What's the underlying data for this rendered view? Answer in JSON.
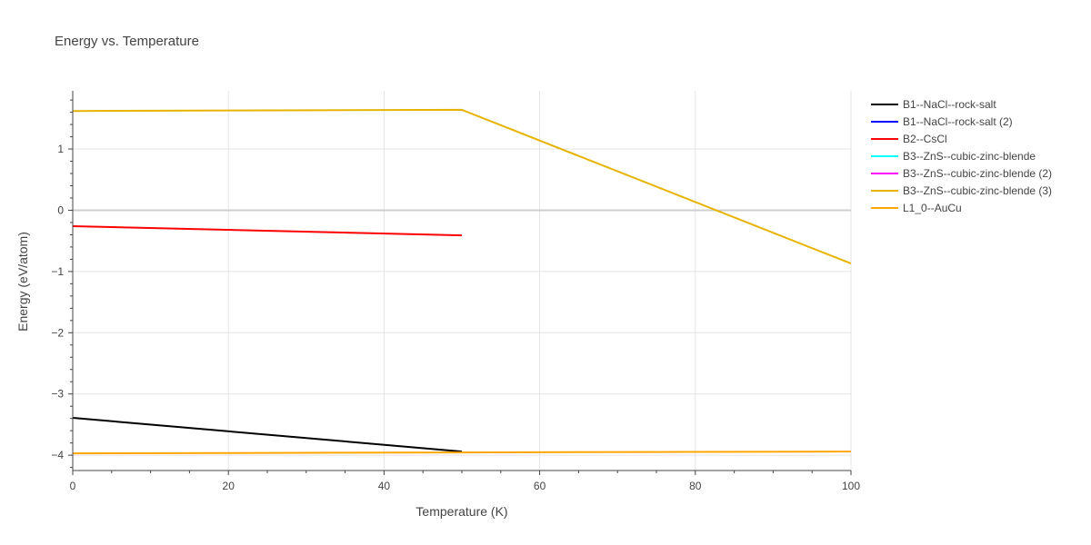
{
  "chart_data": {
    "type": "line",
    "title": "Energy vs. Temperature",
    "xlabel": "Temperature (K)",
    "ylabel": "Energy (eV/atom)",
    "xlim": [
      0,
      100
    ],
    "ylim": [
      -4.25,
      1.95
    ],
    "x_ticks": [
      0,
      20,
      40,
      60,
      80,
      100
    ],
    "y_ticks": [
      1,
      0,
      -1,
      -2,
      -3,
      -4
    ],
    "y_tick_labels": [
      "1",
      "0",
      "−1",
      "−2",
      "−3",
      "−4"
    ],
    "grid": true,
    "legend_position": "right",
    "series": [
      {
        "name": "B1--NaCl--rock-salt",
        "color": "#000000",
        "x": [
          0,
          50
        ],
        "y": [
          -3.39,
          -3.94
        ]
      },
      {
        "name": "B1--NaCl--rock-salt (2)",
        "color": "#0000ff",
        "x": [],
        "y": []
      },
      {
        "name": "B2--CsCl",
        "color": "#ff0000",
        "x": [
          0,
          50
        ],
        "y": [
          -0.26,
          -0.41
        ]
      },
      {
        "name": "B3--ZnS--cubic-zinc-blende",
        "color": "#00ffff",
        "x": [],
        "y": []
      },
      {
        "name": "B3--ZnS--cubic-zinc-blende (2)",
        "color": "#ff00ff",
        "x": [],
        "y": []
      },
      {
        "name": "B3--ZnS--cubic-zinc-blende (3)",
        "color": "#e6b400",
        "x": [
          0,
          50,
          100
        ],
        "y": [
          1.62,
          1.64,
          -0.87
        ]
      },
      {
        "name": "L1_0--AuCu",
        "color": "#ffa500",
        "x": [
          0,
          100
        ],
        "y": [
          -3.97,
          -3.94
        ]
      }
    ]
  }
}
